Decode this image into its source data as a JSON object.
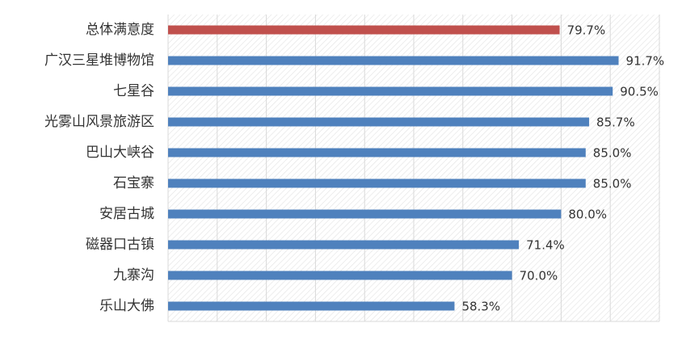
{
  "chart_data": {
    "type": "hbar",
    "categories": [
      "总体满意度",
      "广汉三星堆博物馆",
      "七星谷",
      "光雾山风景旅游区",
      "巴山大峡谷",
      "石宝寨",
      "安居古城",
      "磁器口古镇",
      "九寨沟",
      "乐山大佛"
    ],
    "values": [
      79.7,
      91.7,
      90.5,
      85.7,
      85.0,
      85.0,
      80.0,
      71.4,
      70.0,
      58.3
    ],
    "value_labels": [
      "79.7%",
      "91.7%",
      "90.5%",
      "85.7%",
      "85.0%",
      "85.0%",
      "80.0%",
      "71.4%",
      "70.0%",
      "58.3%"
    ],
    "colors": [
      "#c0504d",
      "#4f81bd",
      "#4f81bd",
      "#4f81bd",
      "#4f81bd",
      "#4f81bd",
      "#4f81bd",
      "#4f81bd",
      "#4f81bd",
      "#4f81bd"
    ],
    "xlim": [
      0,
      100
    ],
    "xticks": [
      0,
      10,
      20,
      30,
      40,
      50,
      60,
      70,
      80,
      90,
      100
    ],
    "grid": true
  }
}
